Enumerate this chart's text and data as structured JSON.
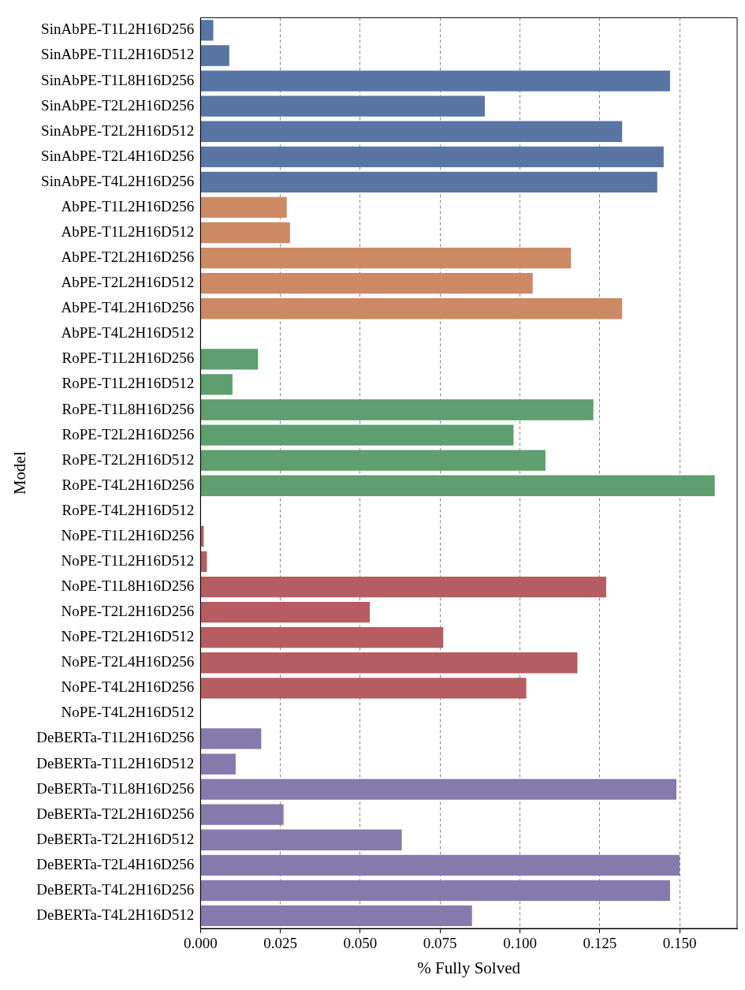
{
  "chart_data": {
    "type": "bar",
    "orientation": "horizontal",
    "xlabel": "% Fully Solved",
    "ylabel": "Model",
    "categories": [
      "SinAbPE-T1L2H16D256",
      "SinAbPE-T1L2H16D512",
      "SinAbPE-T1L8H16D256",
      "SinAbPE-T2L2H16D256",
      "SinAbPE-T2L2H16D512",
      "SinAbPE-T2L4H16D256",
      "SinAbPE-T4L2H16D256",
      "AbPE-T1L2H16D256",
      "AbPE-T1L2H16D512",
      "AbPE-T2L2H16D256",
      "AbPE-T2L2H16D512",
      "AbPE-T4L2H16D256",
      "AbPE-T4L2H16D512",
      "RoPE-T1L2H16D256",
      "RoPE-T1L2H16D512",
      "RoPE-T1L8H16D256",
      "RoPE-T2L2H16D256",
      "RoPE-T2L2H16D512",
      "RoPE-T4L2H16D256",
      "RoPE-T4L2H16D512",
      "NoPE-T1L2H16D256",
      "NoPE-T1L2H16D512",
      "NoPE-T1L8H16D256",
      "NoPE-T2L2H16D256",
      "NoPE-T2L2H16D512",
      "NoPE-T2L4H16D256",
      "NoPE-T4L2H16D256",
      "NoPE-T4L2H16D512",
      "DeBERTa-T1L2H16D256",
      "DeBERTa-T1L2H16D512",
      "DeBERTa-T1L8H16D256",
      "DeBERTa-T2L2H16D256",
      "DeBERTa-T2L2H16D512",
      "DeBERTa-T2L4H16D256",
      "DeBERTa-T4L2H16D256",
      "DeBERTa-T4L2H16D512"
    ],
    "values": [
      0.004,
      0.009,
      0.147,
      0.089,
      0.132,
      0.145,
      0.143,
      0.027,
      0.028,
      0.116,
      0.104,
      0.132,
      0,
      0.018,
      0.01,
      0.123,
      0.098,
      0.108,
      0.161,
      0,
      0.001,
      0.002,
      0.127,
      0.053,
      0.076,
      0.118,
      0.102,
      0,
      0.019,
      0.011,
      0.149,
      0.026,
      0.063,
      0.15,
      0.147,
      0.085
    ],
    "colors": [
      "#5875a4",
      "#5875a4",
      "#5875a4",
      "#5875a4",
      "#5875a4",
      "#5875a4",
      "#5875a4",
      "#cc8963",
      "#cc8963",
      "#cc8963",
      "#cc8963",
      "#cc8963",
      "#cc8963",
      "#5f9e6e",
      "#5f9e6e",
      "#5f9e6e",
      "#5f9e6e",
      "#5f9e6e",
      "#5f9e6e",
      "#5f9e6e",
      "#b55d60",
      "#b55d60",
      "#b55d60",
      "#b55d60",
      "#b55d60",
      "#b55d60",
      "#b55d60",
      "#b55d60",
      "#857aab",
      "#857aab",
      "#857aab",
      "#857aab",
      "#857aab",
      "#857aab",
      "#857aab",
      "#857aab"
    ],
    "xlim": [
      0,
      0.168
    ],
    "xticks": [
      {
        "value": 0,
        "label": "0.000"
      },
      {
        "value": 0.025,
        "label": "0.025"
      },
      {
        "value": 0.05,
        "label": "0.050"
      },
      {
        "value": 0.075,
        "label": "0.075"
      },
      {
        "value": 0.1,
        "label": "0.100"
      },
      {
        "value": 0.125,
        "label": "0.125"
      },
      {
        "value": 0.15,
        "label": "0.150"
      }
    ],
    "grid": "x",
    "legend": false
  }
}
